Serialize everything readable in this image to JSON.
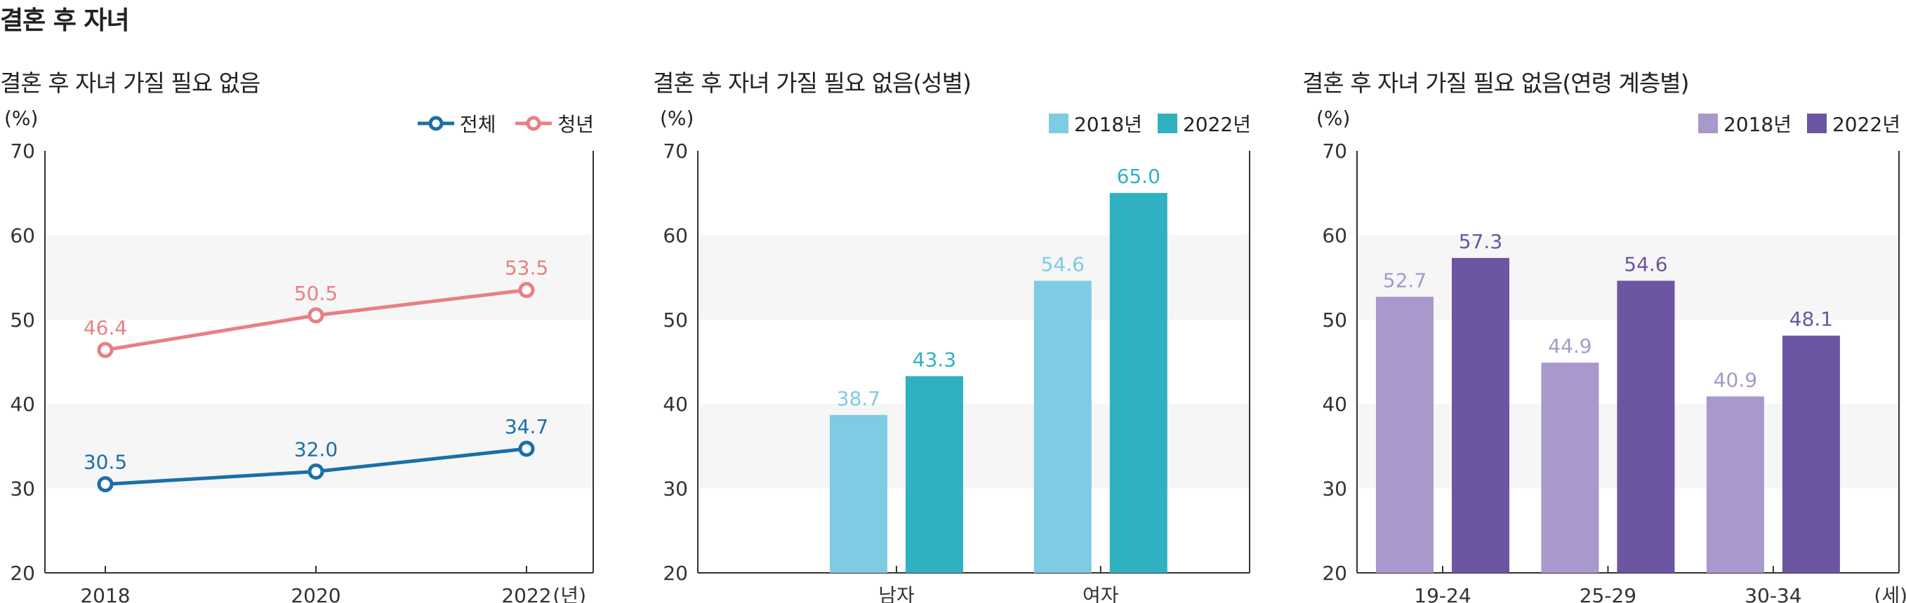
{
  "page_title": "결혼 후 자녀",
  "chart_data": [
    {
      "type": "line",
      "title": "결혼 후 자녀 가질 필요 없음",
      "ylabel": "(%)",
      "xunit": "(년)",
      "ylim": [
        20,
        70
      ],
      "yticks": [
        "20",
        "30",
        "40",
        "50",
        "60",
        "70"
      ],
      "categories": [
        "2018",
        "2020",
        "2022"
      ],
      "series": [
        {
          "name": "전체",
          "values": [
            30.5,
            32.0,
            34.7
          ],
          "labels": [
            "30.5",
            "32.0",
            "34.7"
          ],
          "color": "#1a6fa8"
        },
        {
          "name": "청년",
          "values": [
            46.4,
            50.5,
            53.5
          ],
          "labels": [
            "46.4",
            "50.5",
            "53.5"
          ],
          "color": "#e87f84"
        }
      ]
    },
    {
      "type": "bar",
      "title": "결혼 후 자녀 가질 필요 없음(성별)",
      "ylabel": "(%)",
      "ylim": [
        20,
        70
      ],
      "yticks": [
        "20",
        "30",
        "40",
        "50",
        "60",
        "70"
      ],
      "categories": [
        "남자",
        "여자"
      ],
      "series": [
        {
          "name": "2018년",
          "values": [
            38.7,
            54.6
          ],
          "labels": [
            "38.7",
            "54.6"
          ],
          "color": "#7ecce3"
        },
        {
          "name": "2022년",
          "values": [
            43.3,
            65.0
          ],
          "labels": [
            "43.3",
            "65.0"
          ],
          "color": "#2fb1c1"
        }
      ]
    },
    {
      "type": "bar",
      "title": "결혼 후 자녀 가질 필요 없음(연령 계층별)",
      "ylabel": "(%)",
      "xunit": "(세)",
      "ylim": [
        20,
        70
      ],
      "yticks": [
        "20",
        "30",
        "40",
        "50",
        "60",
        "70"
      ],
      "categories": [
        "19-24",
        "25-29",
        "30-34"
      ],
      "series": [
        {
          "name": "2018년",
          "values": [
            52.7,
            44.9,
            40.9
          ],
          "labels": [
            "52.7",
            "44.9",
            "40.9"
          ],
          "color": "#a898cc"
        },
        {
          "name": "2022년",
          "values": [
            57.3,
            54.6,
            48.1
          ],
          "labels": [
            "57.3",
            "54.6",
            "48.1"
          ],
          "color": "#6c55a3"
        }
      ]
    }
  ]
}
